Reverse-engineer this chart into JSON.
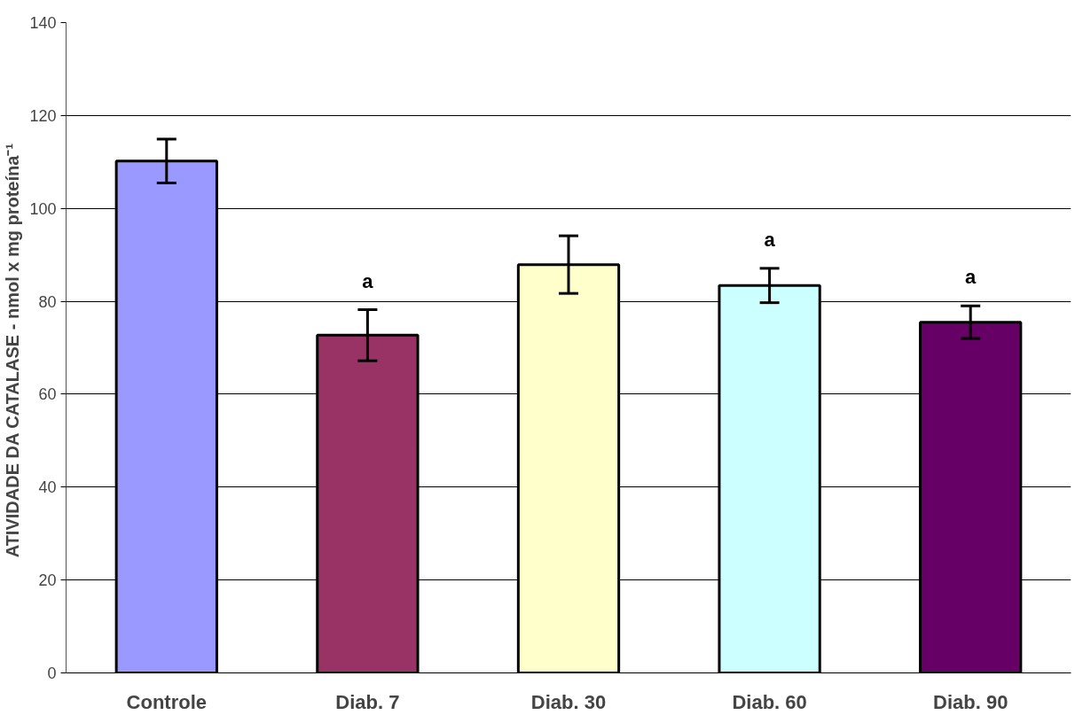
{
  "chart_data": {
    "type": "bar",
    "ylabel": "ATIVIDADE DA CATALASE - nmol x  mg proteína⁻¹",
    "categories": [
      "Controle",
      "Diab. 7",
      "Diab. 30",
      "Diab. 60",
      "Diab. 90"
    ],
    "values": [
      110.2,
      72.7,
      87.9,
      83.4,
      75.5
    ],
    "errors": [
      4.7,
      5.5,
      6.2,
      3.7,
      3.5
    ],
    "colors": [
      "#9999ff",
      "#993366",
      "#ffffcc",
      "#ccffff",
      "#660066"
    ],
    "ylim": [
      0,
      140
    ],
    "yticks": [
      0,
      20,
      40,
      60,
      80,
      100,
      120,
      140
    ],
    "grid": "y",
    "annotations": [
      {
        "text": "a",
        "x": "Diab. 7",
        "y": 78.2
      },
      {
        "text": "a",
        "x": "Diab. 60",
        "y": 87.1
      },
      {
        "text": "a",
        "x": "Diab. 90",
        "y": 79.0
      }
    ]
  }
}
